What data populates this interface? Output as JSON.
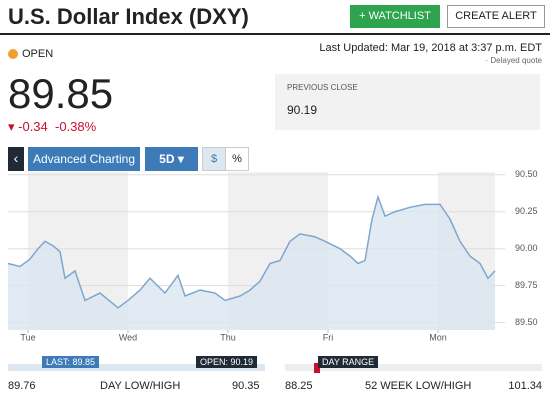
{
  "header": {
    "title": "U.S. Dollar Index (DXY)",
    "watchlist_button": "+ WATCHLIST",
    "alert_button": "CREATE ALERT"
  },
  "status": "OPEN",
  "last_updated": "Last Updated: Mar 19, 2018 at 3:37 p.m. EDT",
  "delayed": "· Delayed quote",
  "quote": {
    "price": "89.85",
    "change": "-0.34",
    "change_percent": "-0.38%"
  },
  "previous_close": {
    "label": "PREVIOUS CLOSE",
    "value": "90.19"
  },
  "toolbar": {
    "advanced": "Advanced Charting",
    "range": "5D",
    "dollar": "$",
    "percent": "%"
  },
  "chart": {
    "type": "area",
    "color": "#7fa6cf",
    "x": [
      -0.2,
      -0.08,
      0.02,
      0.1,
      0.17,
      0.25,
      0.32,
      0.37,
      0.47,
      0.57,
      0.72,
      0.9,
      1.0,
      1.12,
      1.22,
      1.37,
      1.5,
      1.57,
      1.72,
      1.87,
      1.97,
      2.12,
      2.22,
      2.32,
      2.42,
      2.52,
      2.62,
      2.72,
      2.87,
      2.97,
      3.12,
      3.22,
      3.3,
      3.37,
      3.44,
      3.5,
      3.57,
      3.67,
      3.82,
      3.97,
      4.12,
      4.22,
      4.32,
      4.42,
      4.52,
      4.6,
      4.67
    ],
    "values": [
      89.9,
      89.88,
      89.93,
      90.0,
      90.05,
      90.02,
      89.98,
      89.8,
      89.85,
      89.65,
      89.7,
      89.6,
      89.65,
      89.72,
      89.8,
      89.7,
      89.82,
      89.68,
      89.72,
      89.7,
      89.65,
      89.68,
      89.72,
      89.78,
      89.9,
      89.92,
      90.05,
      90.1,
      90.08,
      90.05,
      90.0,
      89.95,
      89.9,
      89.92,
      90.2,
      90.35,
      90.22,
      90.25,
      90.28,
      90.3,
      90.3,
      90.2,
      90.05,
      89.95,
      89.9,
      89.8,
      89.85
    ],
    "xlim": [
      -0.2,
      4.67
    ],
    "xticks": [
      {
        "value": 0,
        "label": "Tue"
      },
      {
        "value": 1,
        "label": "Wed"
      },
      {
        "value": 2,
        "label": "Thu"
      },
      {
        "value": 3,
        "label": "Fri"
      },
      {
        "value": 4.1,
        "label": "Mon"
      }
    ],
    "ylim": [
      89.45,
      90.6
    ],
    "yticks": [
      {
        "value": 89.5,
        "label": "89.50"
      },
      {
        "value": 89.75,
        "label": "89.75"
      },
      {
        "value": 90,
        "label": "90.00"
      },
      {
        "value": 90.25,
        "label": "90.25"
      },
      {
        "value": 90.5,
        "label": "90.50"
      }
    ],
    "grid": true
  },
  "day_range": {
    "last": "LAST: 89.85",
    "open": "OPEN: 90.19",
    "low": "89.76",
    "label": "DAY LOW/HIGH",
    "high": "90.35"
  },
  "week_range": {
    "badge": "DAY RANGE",
    "low": "88.25",
    "label": "52 WEEK LOW/HIGH",
    "high": "101.34"
  }
}
